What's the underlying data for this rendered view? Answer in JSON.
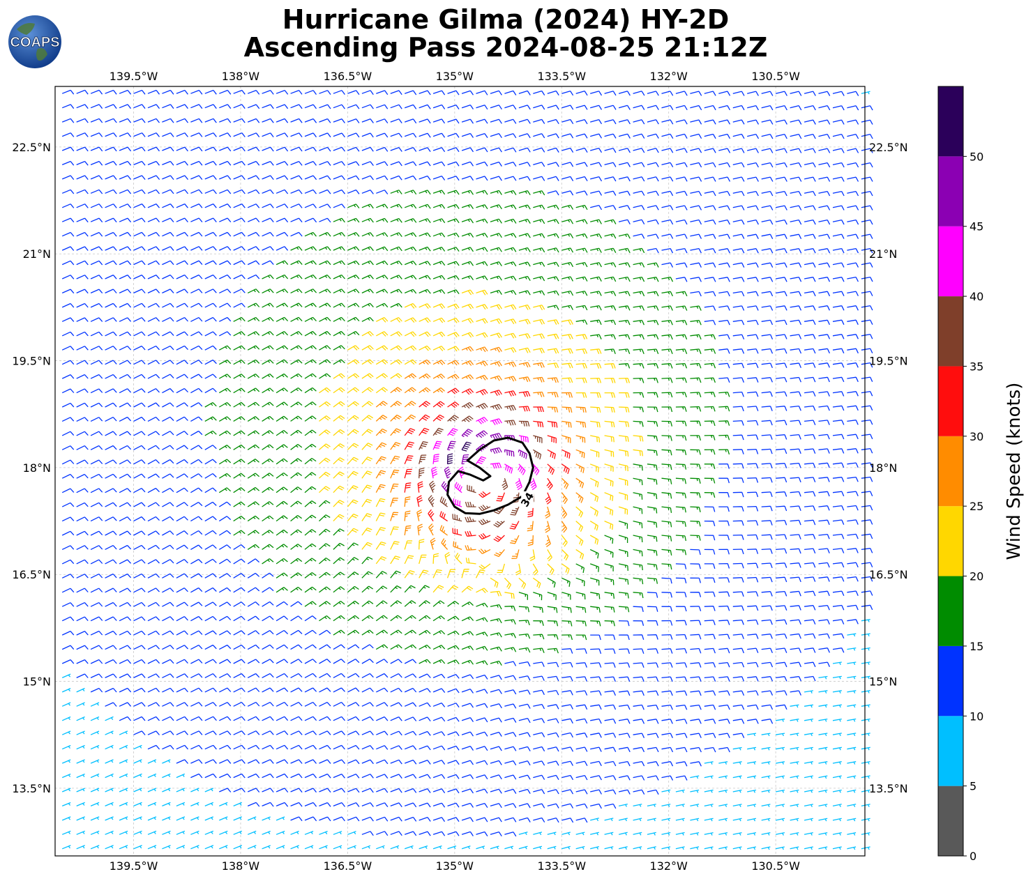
{
  "title": {
    "line1": "Hurricane Gilma (2024) HY-2D",
    "line2": "Ascending Pass 2024-08-25 21:12Z"
  },
  "logo": {
    "text": "COAPS",
    "icon": "globe-icon"
  },
  "map": {
    "lon_range": [
      -140.6,
      -129.25
    ],
    "lat_range": [
      12.55,
      23.35
    ],
    "lon_ticks": [
      {
        "value": -139.5,
        "label": "139.5°W"
      },
      {
        "value": -138.0,
        "label": "138°W"
      },
      {
        "value": -136.5,
        "label": "136.5°W"
      },
      {
        "value": -135.0,
        "label": "135°W"
      },
      {
        "value": -133.5,
        "label": "133.5°W"
      },
      {
        "value": -132.0,
        "label": "132°W"
      },
      {
        "value": -130.5,
        "label": "130.5°W"
      }
    ],
    "lat_ticks": [
      {
        "value": 22.5,
        "label": "22.5°N"
      },
      {
        "value": 21.0,
        "label": "21°N"
      },
      {
        "value": 19.5,
        "label": "19.5°N"
      },
      {
        "value": 18.0,
        "label": "18°N"
      },
      {
        "value": 16.5,
        "label": "16.5°N"
      },
      {
        "value": 15.0,
        "label": "15°N"
      },
      {
        "value": 13.5,
        "label": "13.5°N"
      }
    ],
    "grid": true,
    "storm_center": {
      "lon": -134.55,
      "lat": 17.85
    },
    "contour_34kt": {
      "label": "34",
      "color": "#000000"
    }
  },
  "colorbar": {
    "title": "Wind Speed (knots)",
    "bins": [
      {
        "min": 0,
        "max": 5,
        "color": "#595959"
      },
      {
        "min": 5,
        "max": 10,
        "color": "#00bfff"
      },
      {
        "min": 10,
        "max": 15,
        "color": "#0033ff"
      },
      {
        "min": 15,
        "max": 20,
        "color": "#008c00"
      },
      {
        "min": 20,
        "max": 25,
        "color": "#ffd700"
      },
      {
        "min": 25,
        "max": 30,
        "color": "#ff8c00"
      },
      {
        "min": 30,
        "max": 35,
        "color": "#ff0d0d"
      },
      {
        "min": 35,
        "max": 40,
        "color": "#7f3f2a"
      },
      {
        "min": 40,
        "max": 45,
        "color": "#ff00ff"
      },
      {
        "min": 45,
        "max": 50,
        "color": "#8b00b3"
      },
      {
        "min": 50,
        "max": 55,
        "color": "#2b005a"
      }
    ],
    "tick_labels": [
      "0",
      "5",
      "10",
      "15",
      "20",
      "25",
      "30",
      "35",
      "40",
      "45",
      "50"
    ]
  }
}
